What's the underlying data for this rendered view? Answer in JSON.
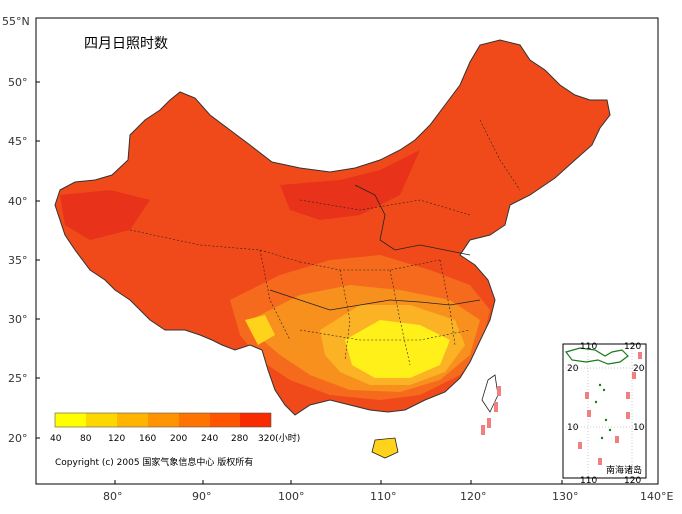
{
  "map": {
    "title": "四月日照时数",
    "copyright": "Copyright (c) 2005 国家气象信息中心 版权所有",
    "frame_color": "#000000",
    "lat_labels": [
      "55°N",
      "50°",
      "45°",
      "40°",
      "35°",
      "30°",
      "25°",
      "20°"
    ],
    "lon_labels": [
      "80°",
      "90°",
      "100°",
      "110°",
      "120°",
      "130°",
      "140°E"
    ],
    "legend": {
      "ticks": [
        "40",
        "80",
        "120",
        "160",
        "200",
        "240",
        "280",
        "320(小时)"
      ],
      "colors": [
        "#ffff00",
        "#ffd700",
        "#ffb400",
        "#ff9400",
        "#ff7400",
        "#ff5400",
        "#f82a00"
      ]
    },
    "inset": {
      "title": "南海诸岛",
      "top_labels": [
        "110",
        "120"
      ],
      "bottom_labels": [
        "110",
        "120"
      ],
      "left_labels": [
        "20",
        "10"
      ],
      "right_labels": [
        "20",
        "10"
      ]
    },
    "palette": {
      "deep_red": "#e8321a",
      "red": "#f04a1a",
      "orange_red": "#f56a1c",
      "orange": "#f8901e",
      "light_orange": "#fbb224",
      "yellow_orange": "#ffd21c",
      "yellow": "#fff01a",
      "sea_dash": "#f08080",
      "coast_green": "#1b7a1b"
    }
  }
}
